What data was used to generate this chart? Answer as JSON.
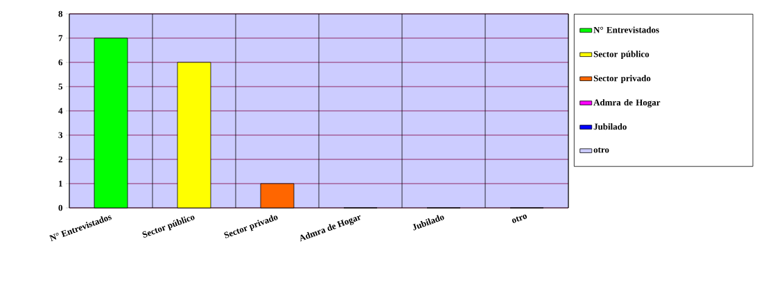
{
  "chart_data": {
    "type": "bar",
    "categories": [
      "N° Entrevistados",
      "Sector público",
      "Sector privado",
      "Admra de Hogar",
      "Jubilado",
      "otro"
    ],
    "series": [
      {
        "name": "N° Entrevistados",
        "color": "#00ff00",
        "values": [
          7,
          null,
          null,
          null,
          null,
          null
        ]
      },
      {
        "name": "Sector público",
        "color": "#ffff00",
        "values": [
          null,
          6,
          null,
          null,
          null,
          null
        ]
      },
      {
        "name": "Sector privado",
        "color": "#ff6600",
        "values": [
          null,
          null,
          1,
          null,
          null,
          null
        ]
      },
      {
        "name": "Admra de Hogar",
        "color": "#ff00ff",
        "values": [
          null,
          null,
          null,
          0,
          null,
          null
        ]
      },
      {
        "name": "Jubilado",
        "color": "#0000ff",
        "values": [
          null,
          null,
          null,
          null,
          0,
          null
        ]
      },
      {
        "name": "otro",
        "color": "#ccccff",
        "values": [
          null,
          null,
          null,
          null,
          null,
          0
        ]
      }
    ],
    "ylim": [
      0,
      8
    ],
    "yticks": [
      0,
      1,
      2,
      3,
      4,
      5,
      6,
      7,
      8
    ],
    "grid": true,
    "legend": "right"
  }
}
